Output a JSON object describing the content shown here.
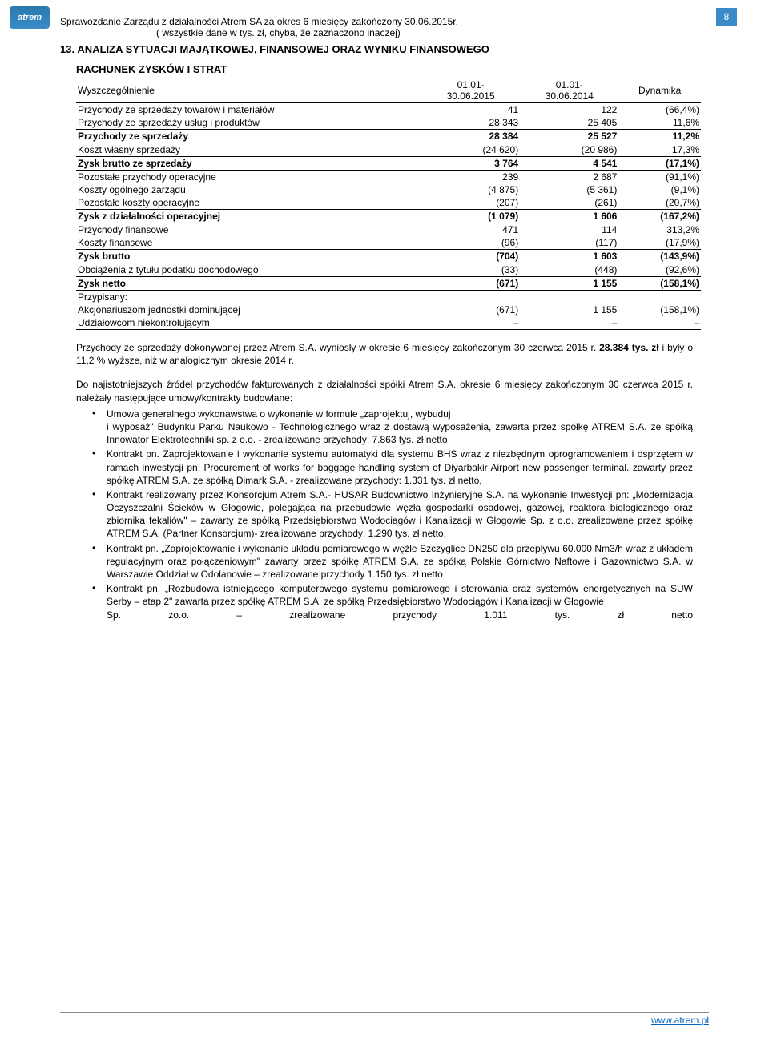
{
  "logo_text": "atrem",
  "page_number": "8",
  "header": {
    "line1": "Sprawozdanie Zarządu z działalności Atrem SA za okres 6 miesięcy zakończony 30.06.2015r.",
    "line2": "( wszystkie dane w tys. zł, chyba, że zaznaczono inaczej)"
  },
  "section": {
    "num": "13.",
    "title": "ANALIZA SYTUACJI MAJĄTKOWEJ, FINANSOWEJ ORAZ WYNIKU FINANSOWEGO"
  },
  "table_heading": "RACHUNEK ZYSKÓW I STRAT",
  "table": {
    "head_label": "Wyszczególnienie",
    "head_c1a": "01.01-",
    "head_c1b": "30.06.2015",
    "head_c2a": "01.01-",
    "head_c2b": "30.06.2014",
    "head_c3": "Dynamika",
    "rows": [
      {
        "label": "Przychody ze sprzedaży towarów i materiałów",
        "v1": "41",
        "v2": "122",
        "dyn": "(66,4%)",
        "bold": false,
        "hr": false
      },
      {
        "label": "Przychody ze sprzedaży usług i produktów",
        "v1": "28 343",
        "v2": "25 405",
        "dyn": "11,6%",
        "bold": false,
        "hr": true
      },
      {
        "label": "Przychody ze sprzedaży",
        "v1": "28 384",
        "v2": "25 527",
        "dyn": "11,2%",
        "bold": true,
        "hr": true
      },
      {
        "label": "Koszt własny sprzedaży",
        "v1": "(24 620)",
        "v2": "(20 986)",
        "dyn": "17,3%",
        "bold": false,
        "hr": true
      },
      {
        "label": "Zysk brutto ze sprzedaży",
        "v1": "3 764",
        "v2": "4 541",
        "dyn": "(17,1%)",
        "bold": true,
        "hr": true
      },
      {
        "label": "Pozostałe przychody operacyjne",
        "v1": "239",
        "v2": "2 687",
        "dyn": "(91,1%)",
        "bold": false,
        "hr": false
      },
      {
        "label": "Koszty ogólnego zarządu",
        "v1": "(4 875)",
        "v2": "(5 361)",
        "dyn": "(9,1%)",
        "bold": false,
        "hr": false
      },
      {
        "label": "Pozostałe koszty operacyjne",
        "v1": "(207)",
        "v2": "(261)",
        "dyn": "(20,7%)",
        "bold": false,
        "hr": true
      },
      {
        "label": "Zysk z działalności operacyjnej",
        "v1": "(1 079)",
        "v2": "1 606",
        "dyn": "(167,2%)",
        "bold": true,
        "hr": true
      },
      {
        "label": "Przychody finansowe",
        "v1": "471",
        "v2": "114",
        "dyn": "313,2%",
        "bold": false,
        "hr": false
      },
      {
        "label": "Koszty finansowe",
        "v1": "(96)",
        "v2": "(117)",
        "dyn": "(17,9%)",
        "bold": false,
        "hr": true
      },
      {
        "label": "Zysk brutto",
        "v1": "(704)",
        "v2": "1 603",
        "dyn": "(143,9%)",
        "bold": true,
        "hr": true
      },
      {
        "label": "Obciążenia z tytułu podatku dochodowego",
        "v1": "(33)",
        "v2": "(448)",
        "dyn": "(92,6%)",
        "bold": false,
        "hr": true
      },
      {
        "label": "Zysk netto",
        "v1": "(671)",
        "v2": "1 155",
        "dyn": "(158,1%)",
        "bold": true,
        "hr": true
      },
      {
        "label": "Przypisany:",
        "v1": "",
        "v2": "",
        "dyn": "",
        "bold": false,
        "hr": false
      },
      {
        "label": "Akcjonariuszom jednostki dominującej",
        "v1": "(671)",
        "v2": "1 155",
        "dyn": "(158,1%)",
        "bold": false,
        "hr": false
      },
      {
        "label": "Udziałowcom niekontrolującym",
        "v1": "–",
        "v2": "–",
        "dyn": "–",
        "bold": false,
        "hr": true
      }
    ]
  },
  "para1": "Przychody ze sprzedaży dokonywanej przez Atrem S.A. wyniosły w okresie 6 miesięcy zakończonym 30 czerwca 2015 r. 28.384 tys. zł i były o 11,2 % wyższe, niż w analogicznym okresie 2014 r.",
  "para2": "Do najistotniejszych źródeł przychodów fakturowanych z działalności spółki Atrem S.A. okresie 6 miesięcy zakończonym 30 czerwca 2015 r. należały następujące umowy/kontrakty budowlane:",
  "bullets": [
    {
      "main": "Umowa generalnego wykonawstwa o wykonanie w formule „zaprojektuj, wybuduj",
      "sub": "i wyposaż\" Budynku Parku Naukowo - Technologicznego wraz z dostawą wyposażenia, zawarta przez spółkę ATREM S.A. ze spółką Innowator Elektrotechniki sp. z o.o. - zrealizowane przychody: 7.863 tys. zł netto"
    },
    {
      "main": "Kontrakt pn. Zaprojektowanie i wykonanie systemu automatyki dla systemu BHS wraz z niezbędnym oprogramowaniem i osprzętem w ramach inwestycji pn. Procurement of works for baggage handling system of Diyarbakir Airport new passenger terminal. zawarty przez spółkę ATREM S.A. ze spółką Dimark S.A. - zrealizowane przychody: 1.331 tys. zł netto,",
      "sub": ""
    },
    {
      "main": "Kontrakt realizowany przez Konsorcjum Atrem S.A.- HUSAR Budownictwo Inżynieryjne S.A. na wykonanie Inwestycji pn: „Modernizacja Oczyszczalni Ścieków w Głogowie, polegająca na przebudowie węzła gospodarki osadowej, gazowej, reaktora biologicznego oraz zbiornika fekaliów\" – zawarty ze spółką Przedsiębiorstwo Wodociągów i Kanalizacji w Głogowie Sp. z o.o. zrealizowane przez spółkę ATREM S.A. (Partner Konsorcjum)- zrealizowane przychody: 1.290  tys. zł netto,",
      "sub": ""
    },
    {
      "main": "Kontrakt pn. „Zaprojektowanie i wykonanie układu pomiarowego w węźle Szczyglice DN250 dla przepływu 60.000 Nm3/h wraz z układem regulacyjnym oraz połączeniowym\" zawarty przez spółkę ATREM S.A. ze spółką Polskie Górnictwo Naftowe i Gazownictwo S.A. w Warszawie Oddział w Odolanowie – zrealizowane przychody 1.150 tys. zł netto",
      "sub": ""
    },
    {
      "main": "Kontrakt pn. „Rozbudowa istniejącego komputerowego systemu pomiarowego i sterowania oraz systemów energetycznych na SUW Serby – etap 2\" zawarta przez spółkę ATREM S.A. ze spółką Przedsiębiorstwo Wodociągów i Kanalizacji w Głogowie",
      "sub": "",
      "lastline": "Sp. zo.o. – zrealizowane przychody 1.011 tys. zł netto"
    }
  ],
  "footer_link": "www.atrem.pl"
}
